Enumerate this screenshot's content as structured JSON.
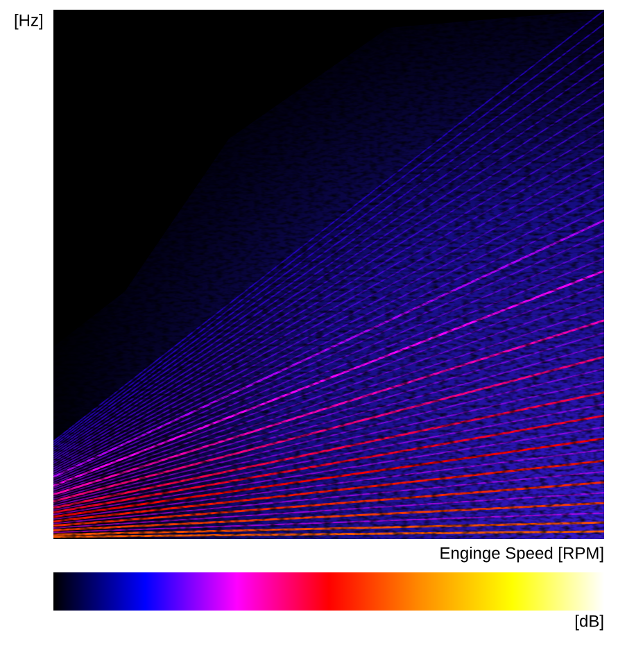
{
  "chart_data": {
    "type": "spectrogram",
    "y_label": "[Hz]",
    "x_label": "Enginge Speed [RPM]",
    "colorbar_label": "[dB]",
    "colormap": [
      "#000000",
      "#0000ff",
      "#ff00ff",
      "#ff0000",
      "#ff8c00",
      "#ffff00",
      "#ffffff"
    ]
  }
}
